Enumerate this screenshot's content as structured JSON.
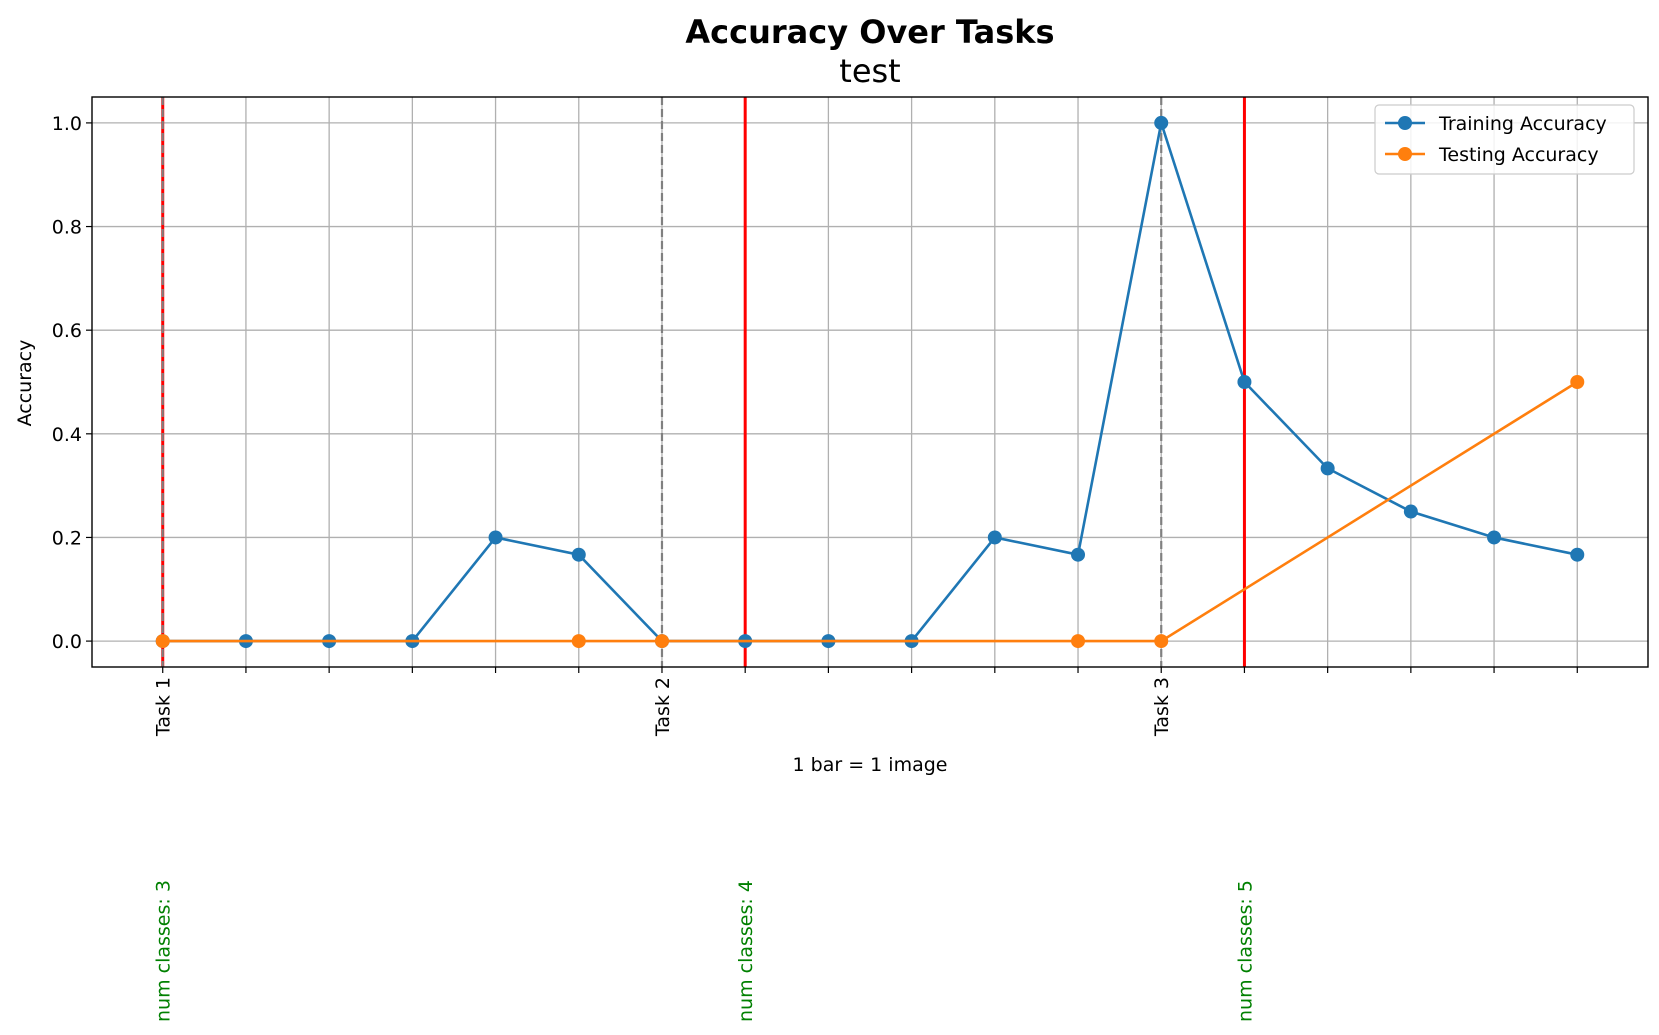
{
  "chart_data": {
    "type": "line",
    "title": "Accuracy Over Tasks",
    "subtitle": "test",
    "xlabel": "1 bar = 1 image",
    "ylabel": "Accuracy",
    "x": [
      0,
      1,
      2,
      3,
      4,
      5,
      6,
      7,
      8,
      9,
      10,
      11,
      12,
      13,
      14,
      15,
      16,
      17
    ],
    "xlim": [
      -0.85,
      17.85
    ],
    "ylim": [
      -0.05,
      1.05
    ],
    "yticks": [
      0.0,
      0.2,
      0.4,
      0.6,
      0.8,
      1.0
    ],
    "ytick_labels": [
      "0.0",
      "0.2",
      "0.4",
      "0.6",
      "0.8",
      "1.0"
    ],
    "xtick_labels": [
      {
        "x": 0,
        "label": "Task 1"
      },
      {
        "x": 6,
        "label": "Task 2"
      },
      {
        "x": 12,
        "label": "Task 3"
      }
    ],
    "grid": true,
    "legend_position": "top-right",
    "series": [
      {
        "name": "Training Accuracy",
        "color": "#1f77b4",
        "points": [
          [
            0,
            0
          ],
          [
            1,
            0
          ],
          [
            2,
            0
          ],
          [
            3,
            0
          ],
          [
            4,
            0.2
          ],
          [
            5,
            0.1667
          ],
          [
            6,
            0
          ],
          [
            7,
            0
          ],
          [
            8,
            0
          ],
          [
            9,
            0
          ],
          [
            10,
            0.2
          ],
          [
            11,
            0.1667
          ],
          [
            12,
            1.0
          ],
          [
            13,
            0.5
          ],
          [
            14,
            0.3333
          ],
          [
            15,
            0.25
          ],
          [
            16,
            0.2
          ],
          [
            17,
            0.1667
          ]
        ]
      },
      {
        "name": "Testing Accuracy",
        "color": "#ff7f0e",
        "points": [
          [
            0,
            0
          ],
          [
            5,
            0
          ],
          [
            6,
            0
          ],
          [
            11,
            0
          ],
          [
            12,
            0
          ],
          [
            17,
            0.5
          ]
        ]
      }
    ],
    "task_boundaries": {
      "x": [
        0,
        6,
        12
      ],
      "color": "#808080",
      "style": "dashed"
    },
    "class_change_lines": {
      "x": [
        0,
        7,
        13
      ],
      "color": "#ff0000",
      "style": "solid"
    },
    "annotations": [
      {
        "x": 0,
        "text": "num classes: 3",
        "color": "#008000"
      },
      {
        "x": 7,
        "text": "num classes: 4",
        "color": "#008000"
      },
      {
        "x": 13,
        "text": "num classes: 5",
        "color": "#008000"
      }
    ]
  }
}
